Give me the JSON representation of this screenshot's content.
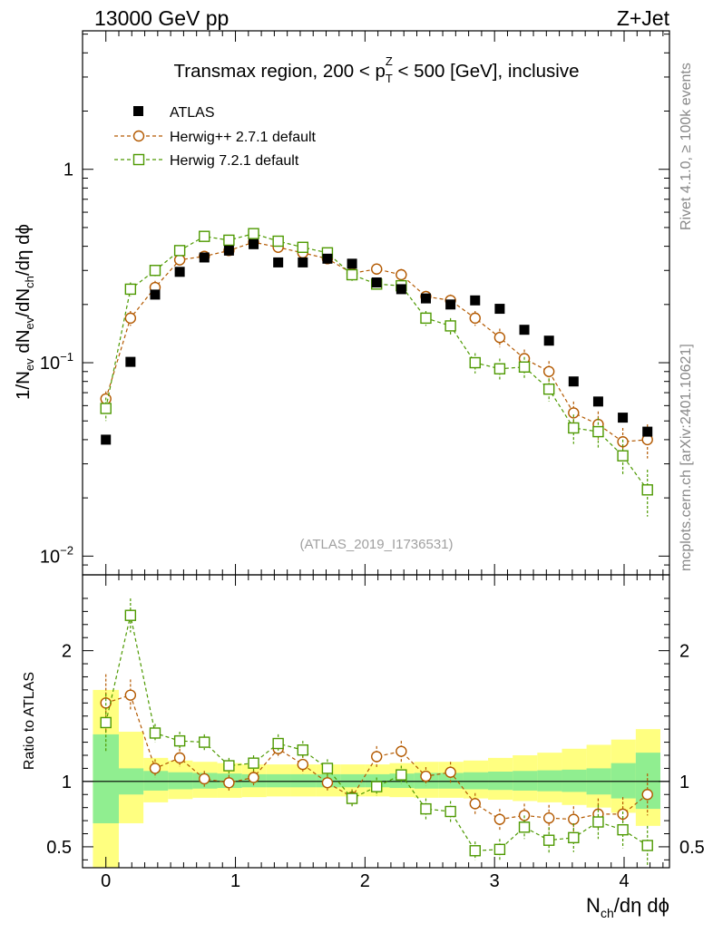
{
  "header": {
    "left": "13000 GeV pp",
    "right": "Z+Jet"
  },
  "side_labels": {
    "rivet": "Rivet 4.1.0, ≥ 100k events",
    "mcplots": "mcplots.cern.ch [arXiv:2401.10621]"
  },
  "chart_data": [
    {
      "type": "scatter",
      "panel": "main",
      "title": "Transmax region, 200 < p_T^Z < 500 [GeV], inclusive",
      "title_parts": {
        "before": "Transmax region, 200 < p",
        "sub": "T",
        "sup": "Z",
        "after": " < 500 [GeV], inclusive"
      },
      "ylabel": "1/N_ev dN_ev/dN_ch/dη dϕ",
      "ylabel_parts": {
        "a": "1/N",
        "a_sub": "ev",
        "b": " dN",
        "b_sub": "ev",
        "c": "/dN",
        "c_sub": "ch",
        "d": "/dη dϕ"
      },
      "yscale": "log",
      "ylim": [
        0.008,
        5.2
      ],
      "yticks": [
        {
          "label": "1",
          "value": 1
        },
        {
          "label": "10",
          "sup": "−1",
          "value": 0.1
        },
        {
          "label": "10",
          "sup": "−2",
          "value": 0.01
        }
      ],
      "xlim": [
        -0.18,
        4.35
      ],
      "watermark": "(ATLAS_2019_I1736531)",
      "x": [
        0.0,
        0.19,
        0.38,
        0.57,
        0.76,
        0.95,
        1.14,
        1.33,
        1.52,
        1.71,
        1.9,
        2.09,
        2.28,
        2.47,
        2.66,
        2.85,
        3.04,
        3.23,
        3.42,
        3.61,
        3.8,
        3.99,
        4.18
      ],
      "series": [
        {
          "name": "ATLAS",
          "marker": "square-filled",
          "color": "#000000",
          "values": [
            0.04,
            0.101,
            0.225,
            0.295,
            0.35,
            0.38,
            0.41,
            0.33,
            0.33,
            0.345,
            0.325,
            0.26,
            0.24,
            0.215,
            0.2,
            0.21,
            0.19,
            0.148,
            0.13,
            0.08,
            0.063,
            0.052,
            0.044
          ],
          "errors": [
            0.002,
            0.004,
            0.008,
            0.009,
            0.01,
            0.01,
            0.01,
            0.009,
            0.009,
            0.009,
            0.009,
            0.008,
            0.007,
            0.007,
            0.006,
            0.007,
            0.007,
            0.006,
            0.006,
            0.004,
            0.004,
            0.003,
            0.003
          ]
        },
        {
          "name": "Herwig++ 2.7.1 default",
          "marker": "circle-open",
          "color": "#b35900",
          "values": [
            0.065,
            0.17,
            0.245,
            0.34,
            0.355,
            0.38,
            0.42,
            0.395,
            0.37,
            0.345,
            0.29,
            0.305,
            0.285,
            0.22,
            0.21,
            0.17,
            0.135,
            0.105,
            0.09,
            0.055,
            0.048,
            0.039,
            0.04
          ],
          "errors": [
            0.006,
            0.015,
            0.02,
            0.02,
            0.02,
            0.02,
            0.02,
            0.02,
            0.02,
            0.02,
            0.02,
            0.02,
            0.02,
            0.015,
            0.015,
            0.015,
            0.015,
            0.012,
            0.012,
            0.008,
            0.008,
            0.007,
            0.008
          ]
        },
        {
          "name": "Herwig 7.2.1 default",
          "marker": "square-open",
          "color": "#4d9900",
          "values": [
            0.058,
            0.24,
            0.3,
            0.38,
            0.45,
            0.43,
            0.465,
            0.425,
            0.395,
            0.37,
            0.285,
            0.255,
            0.25,
            0.17,
            0.155,
            0.1,
            0.093,
            0.095,
            0.073,
            0.046,
            0.044,
            0.033,
            0.022
          ],
          "errors": [
            0.008,
            0.02,
            0.02,
            0.02,
            0.02,
            0.02,
            0.02,
            0.02,
            0.02,
            0.02,
            0.02,
            0.02,
            0.02,
            0.015,
            0.015,
            0.012,
            0.012,
            0.012,
            0.01,
            0.008,
            0.008,
            0.007,
            0.006
          ]
        }
      ],
      "legend_position": "top-left"
    },
    {
      "type": "scatter",
      "panel": "ratio",
      "ylabel": "Ratio to ATLAS",
      "ylim": [
        0.34,
        2.58
      ],
      "yticks": [
        {
          "label": "0.5",
          "value": 0.5
        },
        {
          "label": "1",
          "value": 1
        },
        {
          "label": "2",
          "value": 2
        }
      ],
      "xlim": [
        -0.18,
        4.35
      ],
      "xticks": [
        {
          "label": "0",
          "value": 0
        },
        {
          "label": "1",
          "value": 1
        },
        {
          "label": "2",
          "value": 2
        },
        {
          "label": "3",
          "value": 3
        },
        {
          "label": "4",
          "value": 4
        }
      ],
      "xlabel": "N_ch/dη dϕ",
      "xlabel_parts": {
        "main": "N",
        "sub": "ch",
        "rest": "/dη dϕ"
      },
      "reference_line": 1,
      "band_bin_edges": [
        -0.1,
        0.1,
        0.29,
        0.48,
        0.67,
        0.86,
        1.05,
        1.24,
        1.43,
        1.62,
        1.81,
        2.0,
        2.19,
        2.38,
        2.57,
        2.76,
        2.95,
        3.14,
        3.33,
        3.52,
        3.71,
        3.9,
        4.09,
        4.28
      ],
      "band_stat": {
        "color": "#90ee90",
        "lower": [
          0.68,
          0.9,
          0.93,
          0.94,
          0.945,
          0.95,
          0.955,
          0.955,
          0.955,
          0.955,
          0.955,
          0.955,
          0.95,
          0.945,
          0.945,
          0.94,
          0.935,
          0.93,
          0.925,
          0.92,
          0.9,
          0.87,
          0.79
        ],
        "upper": [
          1.36,
          1.1,
          1.08,
          1.07,
          1.065,
          1.06,
          1.055,
          1.055,
          1.055,
          1.055,
          1.055,
          1.055,
          1.06,
          1.065,
          1.065,
          1.07,
          1.075,
          1.08,
          1.085,
          1.09,
          1.1,
          1.14,
          1.22
        ]
      },
      "band_total": {
        "color": "#ffff80",
        "lower": [
          0.34,
          0.68,
          0.84,
          0.865,
          0.875,
          0.875,
          0.88,
          0.885,
          0.885,
          0.885,
          0.885,
          0.885,
          0.88,
          0.875,
          0.875,
          0.87,
          0.86,
          0.85,
          0.84,
          0.82,
          0.8,
          0.76,
          0.66
        ],
        "upper": [
          1.7,
          1.38,
          1.18,
          1.16,
          1.15,
          1.14,
          1.13,
          1.13,
          1.13,
          1.13,
          1.13,
          1.13,
          1.14,
          1.15,
          1.15,
          1.16,
          1.18,
          1.2,
          1.22,
          1.25,
          1.28,
          1.32,
          1.4
        ]
      },
      "series": [
        {
          "name": "Herwig++ 2.7.1 default",
          "color": "#b35900",
          "values": [
            1.6,
            1.66,
            1.1,
            1.18,
            1.02,
            0.99,
            1.03,
            1.25,
            1.13,
            0.99,
            0.88,
            1.19,
            1.23,
            1.04,
            1.07,
            0.83,
            0.71,
            0.74,
            0.72,
            0.71,
            0.75,
            0.75,
            0.9
          ],
          "errors": [
            0.22,
            0.12,
            0.07,
            0.07,
            0.06,
            0.06,
            0.06,
            0.07,
            0.07,
            0.06,
            0.06,
            0.08,
            0.08,
            0.07,
            0.08,
            0.08,
            0.08,
            0.09,
            0.1,
            0.1,
            0.12,
            0.13,
            0.16
          ]
        },
        {
          "name": "Herwig 7.2.1 default",
          "color": "#4d9900",
          "values": [
            1.45,
            2.27,
            1.37,
            1.31,
            1.3,
            1.12,
            1.14,
            1.29,
            1.24,
            1.1,
            0.87,
            0.96,
            1.05,
            0.79,
            0.77,
            0.47,
            0.48,
            0.65,
            0.55,
            0.57,
            0.69,
            0.63,
            0.51
          ],
          "errors": [
            0.22,
            0.13,
            0.07,
            0.07,
            0.06,
            0.06,
            0.06,
            0.07,
            0.07,
            0.07,
            0.06,
            0.07,
            0.07,
            0.08,
            0.08,
            0.07,
            0.08,
            0.09,
            0.1,
            0.11,
            0.13,
            0.14,
            0.15
          ]
        }
      ]
    }
  ]
}
